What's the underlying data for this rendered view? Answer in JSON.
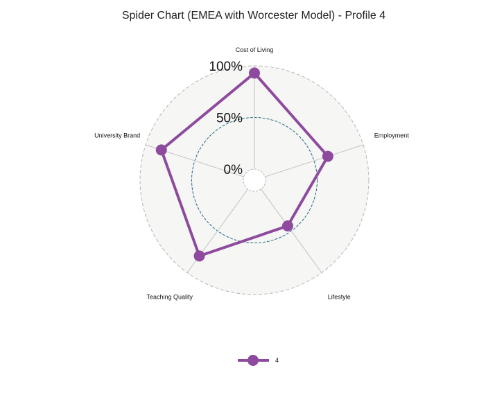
{
  "chart_data": {
    "type": "radar",
    "title": "Spider Chart (EMEA with Worcester Model) - Profile 4",
    "axes": [
      "Cost of Living",
      "Employment",
      "Lifestyle",
      "Teaching Quality",
      "University Brand"
    ],
    "radial_ticks": [
      "0%",
      "50%",
      "100%"
    ],
    "range": [
      0,
      1
    ],
    "reference_ring": 0.5,
    "series": [
      {
        "name": "4",
        "values": [
          0.93,
          0.64,
          0.44,
          0.8,
          0.84
        ],
        "color": "#8e4a9e"
      }
    ],
    "legend_position": "bottom",
    "colors": {
      "background_disk": "#f6f6f5",
      "outer_ring": "#b5b5b5",
      "reference_ring": "#1b6a80",
      "spokes": "#c2c2c2"
    }
  }
}
